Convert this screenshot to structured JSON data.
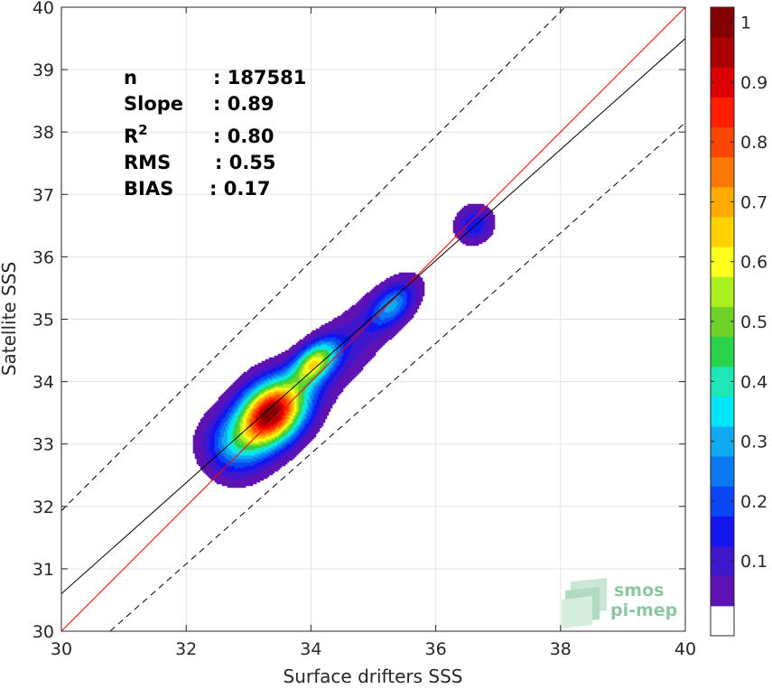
{
  "chart_data": {
    "type": "contour-density-scatter",
    "xlabel": "Surface drifters SSS",
    "ylabel": "Satellite SSS",
    "xlim": [
      30,
      40
    ],
    "ylim": [
      30,
      40
    ],
    "xticks": [
      "30",
      "32",
      "34",
      "36",
      "38",
      "40"
    ],
    "yticks": [
      "30",
      "31",
      "32",
      "33",
      "34",
      "35",
      "36",
      "37",
      "38",
      "39",
      "40"
    ],
    "grid": true,
    "stats": [
      {
        "label": "n",
        "value": ": 187581"
      },
      {
        "label": "Slope",
        "value": ": 0.89"
      },
      {
        "label": "R",
        "sup": "2",
        "value": ": 0.80"
      },
      {
        "label": "RMS",
        "value": ": 0.55"
      },
      {
        "label": "BIAS",
        "value": ": 0.17"
      }
    ],
    "lines": [
      {
        "kind": "identity",
        "color": "#ff0000",
        "points": [
          [
            30,
            30
          ],
          [
            40,
            40
          ]
        ]
      },
      {
        "kind": "regression",
        "color": "#000000",
        "points": [
          [
            30,
            30.6
          ],
          [
            40,
            39.5
          ]
        ]
      },
      {
        "kind": "upper-bound",
        "color": "#000000",
        "dashed": true,
        "points": [
          [
            30,
            31.93
          ],
          [
            40,
            41.93
          ]
        ]
      },
      {
        "kind": "lower-bound",
        "color": "#000000",
        "dashed": true,
        "points": [
          [
            30.78,
            30
          ],
          [
            40,
            38.15
          ]
        ]
      }
    ],
    "density_peaks": [
      {
        "x": 33.35,
        "y": 33.5,
        "density": 1.0
      },
      {
        "x": 34.05,
        "y": 34.3,
        "density": 0.6
      },
      {
        "x": 35.3,
        "y": 35.22,
        "density": 0.35
      },
      {
        "x": 36.65,
        "y": 36.53,
        "density": 0.2
      }
    ],
    "colorbar": {
      "range": [
        0,
        1
      ],
      "ticks": [
        "0.1",
        "0.2",
        "0.3",
        "0.4",
        "0.5",
        "0.6",
        "0.7",
        "0.8",
        "0.9",
        "1"
      ],
      "colors": [
        "#ffffff",
        "#5e12b4",
        "#3f17cd",
        "#1414ef",
        "#0a46f5",
        "#0a78f0",
        "#10aaf0",
        "#00e6f8",
        "#1ee6b4",
        "#28d24a",
        "#6ed228",
        "#aaf01e",
        "#ffff1e",
        "#ffd200",
        "#ffaa00",
        "#ff7800",
        "#ff4600",
        "#ff1e00",
        "#dc0000",
        "#aa0000",
        "#820000"
      ]
    },
    "watermark": {
      "line1": "smos",
      "line2": "pi-mep"
    }
  }
}
